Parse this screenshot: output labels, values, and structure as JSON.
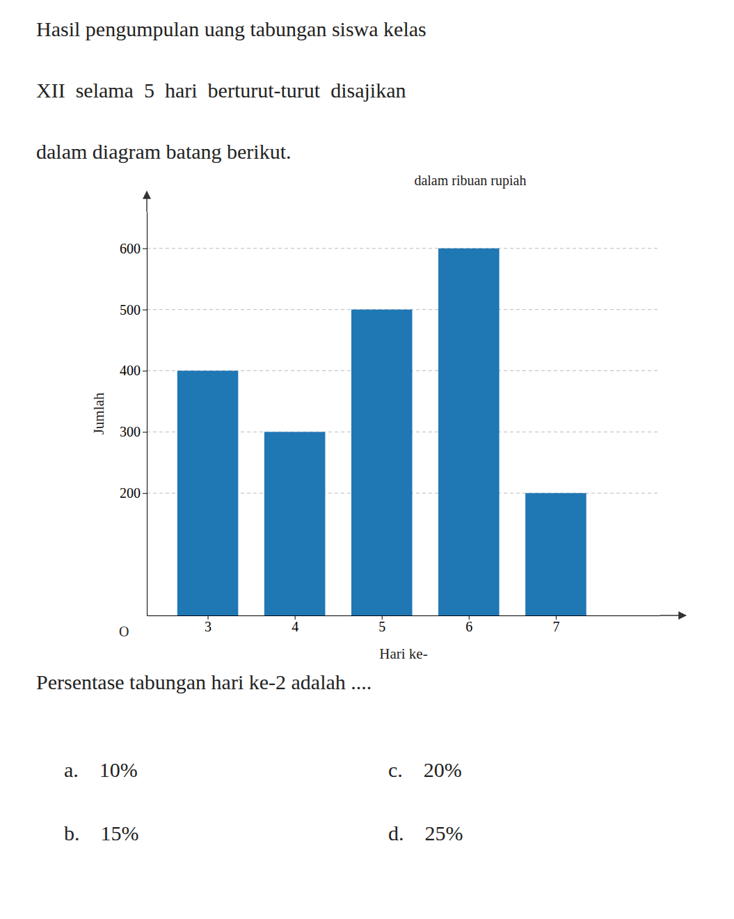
{
  "chart_data": {
    "type": "bar",
    "title": [
      "Hasil pengumpulan uang tabungan siswa kelas",
      "XII  selama  5  hari  berturut-turut  disajikan",
      "dalam diagram batang berikut."
    ],
    "subtitle": "dalam ribuan rupiah",
    "x_label": "Hari ke-",
    "y_label": "Jumlah",
    "x": [
      3,
      4,
      5,
      6,
      7
    ],
    "values": [
      400,
      300,
      500,
      600,
      200
    ],
    "xlim": [
      2.3,
      8.2
    ],
    "xticks": [
      3,
      4,
      5,
      6,
      7
    ],
    "ylim": [
      0,
      660
    ],
    "yticks": [
      200,
      300,
      400,
      500,
      600
    ],
    "grid": true,
    "origin_label": "O",
    "question": "Persentase tabungan hari ke-2 adalah ....",
    "options": [
      "a.    10%",
      "b.    15%",
      "c.    20%",
      "d.    25%"
    ]
  }
}
